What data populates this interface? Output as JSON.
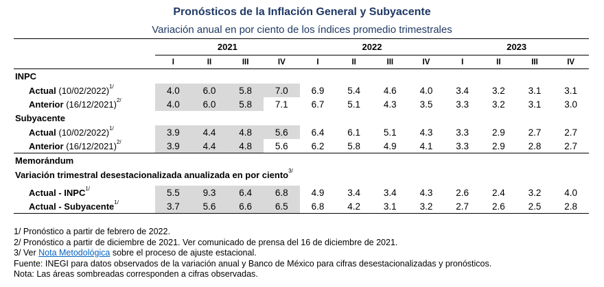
{
  "title": "Pronósticos de la Inflación General y Subyacente",
  "subtitle": "Variación anual en por ciento de los índices promedio trimestrales",
  "years": [
    "2021",
    "2022",
    "2023"
  ],
  "quarters": [
    "I",
    "II",
    "III",
    "IV",
    "I",
    "II",
    "III",
    "IV",
    "I",
    "II",
    "III",
    "IV"
  ],
  "sections": {
    "inpc": "INPC",
    "subyacente": "Subyacente",
    "memorandum": "Memorándum",
    "variacion": "Variación trimestral desestacionalizada anualizada en por ciento",
    "variacion_sup": "3/"
  },
  "rows": {
    "inpc_actual": {
      "label": "Actual",
      "date": "(10/02/2022)",
      "sup": "1/",
      "values": [
        "4.0",
        "6.0",
        "5.8",
        "7.0",
        "6.9",
        "5.4",
        "4.6",
        "4.0",
        "3.4",
        "3.2",
        "3.1",
        "3.1"
      ]
    },
    "inpc_anterior": {
      "label": "Anterior",
      "date": "(16/12/2021)",
      "sup": "2/",
      "values": [
        "4.0",
        "6.0",
        "5.8",
        "7.1",
        "6.7",
        "5.1",
        "4.3",
        "3.5",
        "3.3",
        "3.2",
        "3.1",
        "3.0"
      ]
    },
    "sub_actual": {
      "label": "Actual",
      "date": "(10/02/2022)",
      "sup": "1/",
      "values": [
        "3.9",
        "4.4",
        "4.8",
        "5.6",
        "6.4",
        "6.1",
        "5.1",
        "4.3",
        "3.3",
        "2.9",
        "2.7",
        "2.7"
      ]
    },
    "sub_anterior": {
      "label": "Anterior",
      "date": "(16/12/2021)",
      "sup": "2/",
      "values": [
        "3.9",
        "4.4",
        "4.8",
        "5.6",
        "6.2",
        "5.8",
        "4.9",
        "4.1",
        "3.3",
        "2.9",
        "2.8",
        "2.7"
      ]
    },
    "mem_inpc": {
      "label": "Actual - INPC",
      "sup": "1/",
      "values": [
        "5.5",
        "9.3",
        "6.4",
        "6.8",
        "4.9",
        "3.4",
        "3.4",
        "4.3",
        "2.6",
        "2.4",
        "3.2",
        "4.0"
      ]
    },
    "mem_sub": {
      "label": "Actual - Subyacente",
      "sup": "1/",
      "values": [
        "3.7",
        "5.6",
        "6.6",
        "6.5",
        "6.8",
        "4.2",
        "3.1",
        "3.2",
        "2.7",
        "2.6",
        "2.5",
        "2.8"
      ]
    }
  },
  "notes": {
    "n1": "1/ Pronóstico a partir de febrero de 2022.",
    "n2": "2/ Pronóstico a partir de diciembre de 2021. Ver comunicado de prensa del 16 de diciembre de 2021.",
    "n3_pre": "3/ Ver ",
    "n3_link": "Nota Metodológica",
    "n3_post": " sobre el proceso de ajuste estacional.",
    "fuente": "Fuente: INEGI para datos observados de la variación anual y Banco de México para cifras desestacionalizadas y pronósticos.",
    "nota": "Nota: Las áreas sombreadas corresponden a cifras observadas."
  }
}
